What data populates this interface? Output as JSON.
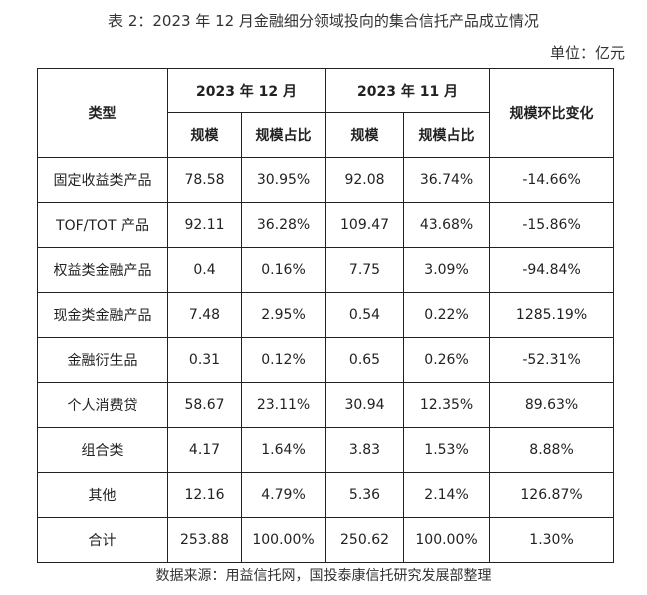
{
  "title": "表 2：2023 年 12 月金融细分领域投向的集合信托产品成立情况",
  "unit": "单位：亿元",
  "header": {
    "type_label": "类型",
    "period_dec": "2023 年 12 月",
    "period_nov": "2023 年 11 月",
    "mom_change": "规模环比变化",
    "scale": "规模",
    "share": "规模占比"
  },
  "rows": [
    {
      "type": "固定收益类产品",
      "dec_scale": "78.58",
      "dec_share": "30.95%",
      "nov_scale": "92.08",
      "nov_share": "36.74%",
      "change": "-14.66%"
    },
    {
      "type": "TOF/TOT 产品",
      "dec_scale": "92.11",
      "dec_share": "36.28%",
      "nov_scale": "109.47",
      "nov_share": "43.68%",
      "change": "-15.86%"
    },
    {
      "type": "权益类金融产品",
      "dec_scale": "0.4",
      "dec_share": "0.16%",
      "nov_scale": "7.75",
      "nov_share": "3.09%",
      "change": "-94.84%"
    },
    {
      "type": "现金类金融产品",
      "dec_scale": "7.48",
      "dec_share": "2.95%",
      "nov_scale": "0.54",
      "nov_share": "0.22%",
      "change": "1285.19%"
    },
    {
      "type": "金融衍生品",
      "dec_scale": "0.31",
      "dec_share": "0.12%",
      "nov_scale": "0.65",
      "nov_share": "0.26%",
      "change": "-52.31%"
    },
    {
      "type": "个人消费贷",
      "dec_scale": "58.67",
      "dec_share": "23.11%",
      "nov_scale": "30.94",
      "nov_share": "12.35%",
      "change": "89.63%"
    },
    {
      "type": "组合类",
      "dec_scale": "4.17",
      "dec_share": "1.64%",
      "nov_scale": "3.83",
      "nov_share": "1.53%",
      "change": "8.88%"
    },
    {
      "type": "其他",
      "dec_scale": "12.16",
      "dec_share": "4.79%",
      "nov_scale": "5.36",
      "nov_share": "2.14%",
      "change": "126.87%"
    },
    {
      "type": "合计",
      "dec_scale": "253.88",
      "dec_share": "100.00%",
      "nov_scale": "250.62",
      "nov_share": "100.00%",
      "change": "1.30%"
    }
  ],
  "source": "数据来源：用益信托网，国投泰康信托研究发展部整理"
}
